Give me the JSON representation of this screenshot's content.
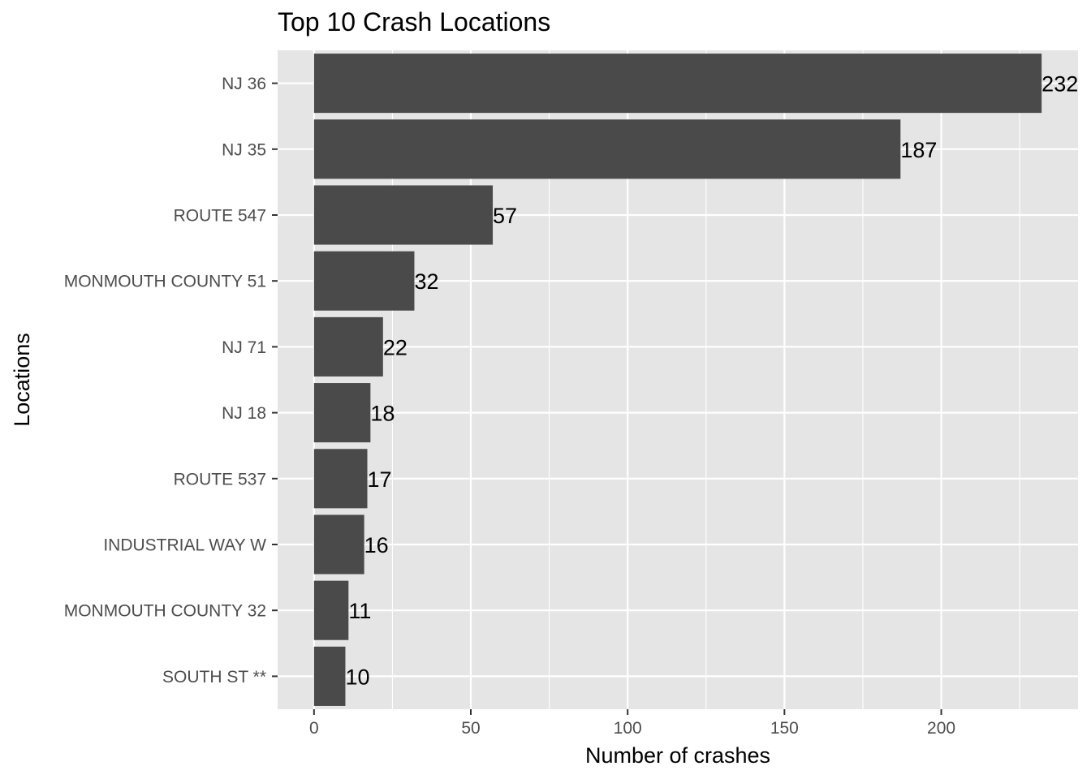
{
  "chart_data": {
    "type": "bar",
    "orientation": "horizontal",
    "title": "Top 10 Crash Locations",
    "xlabel": "Number of crashes",
    "ylabel": "Locations",
    "categories": [
      "NJ 36",
      "NJ 35",
      "ROUTE 547",
      "MONMOUTH COUNTY 51",
      "NJ 71",
      "NJ 18",
      "ROUTE 537",
      "INDUSTRIAL WAY W",
      "MONMOUTH COUNTY 32",
      "SOUTH ST **"
    ],
    "values": [
      232,
      187,
      57,
      32,
      22,
      18,
      17,
      16,
      11,
      10
    ],
    "xlim": [
      -11.6,
      243.6
    ],
    "xticks": [
      0,
      50,
      100,
      150,
      200
    ],
    "x_minor_ticks": [
      25,
      75,
      125,
      175,
      225
    ],
    "grid": true,
    "legend": "none",
    "colors": {
      "bar": "#4a4a4a",
      "panel": "#e5e5e5",
      "grid": "#ffffff",
      "tick_text": "#4d4d4d",
      "tick_mark": "#333333"
    }
  }
}
